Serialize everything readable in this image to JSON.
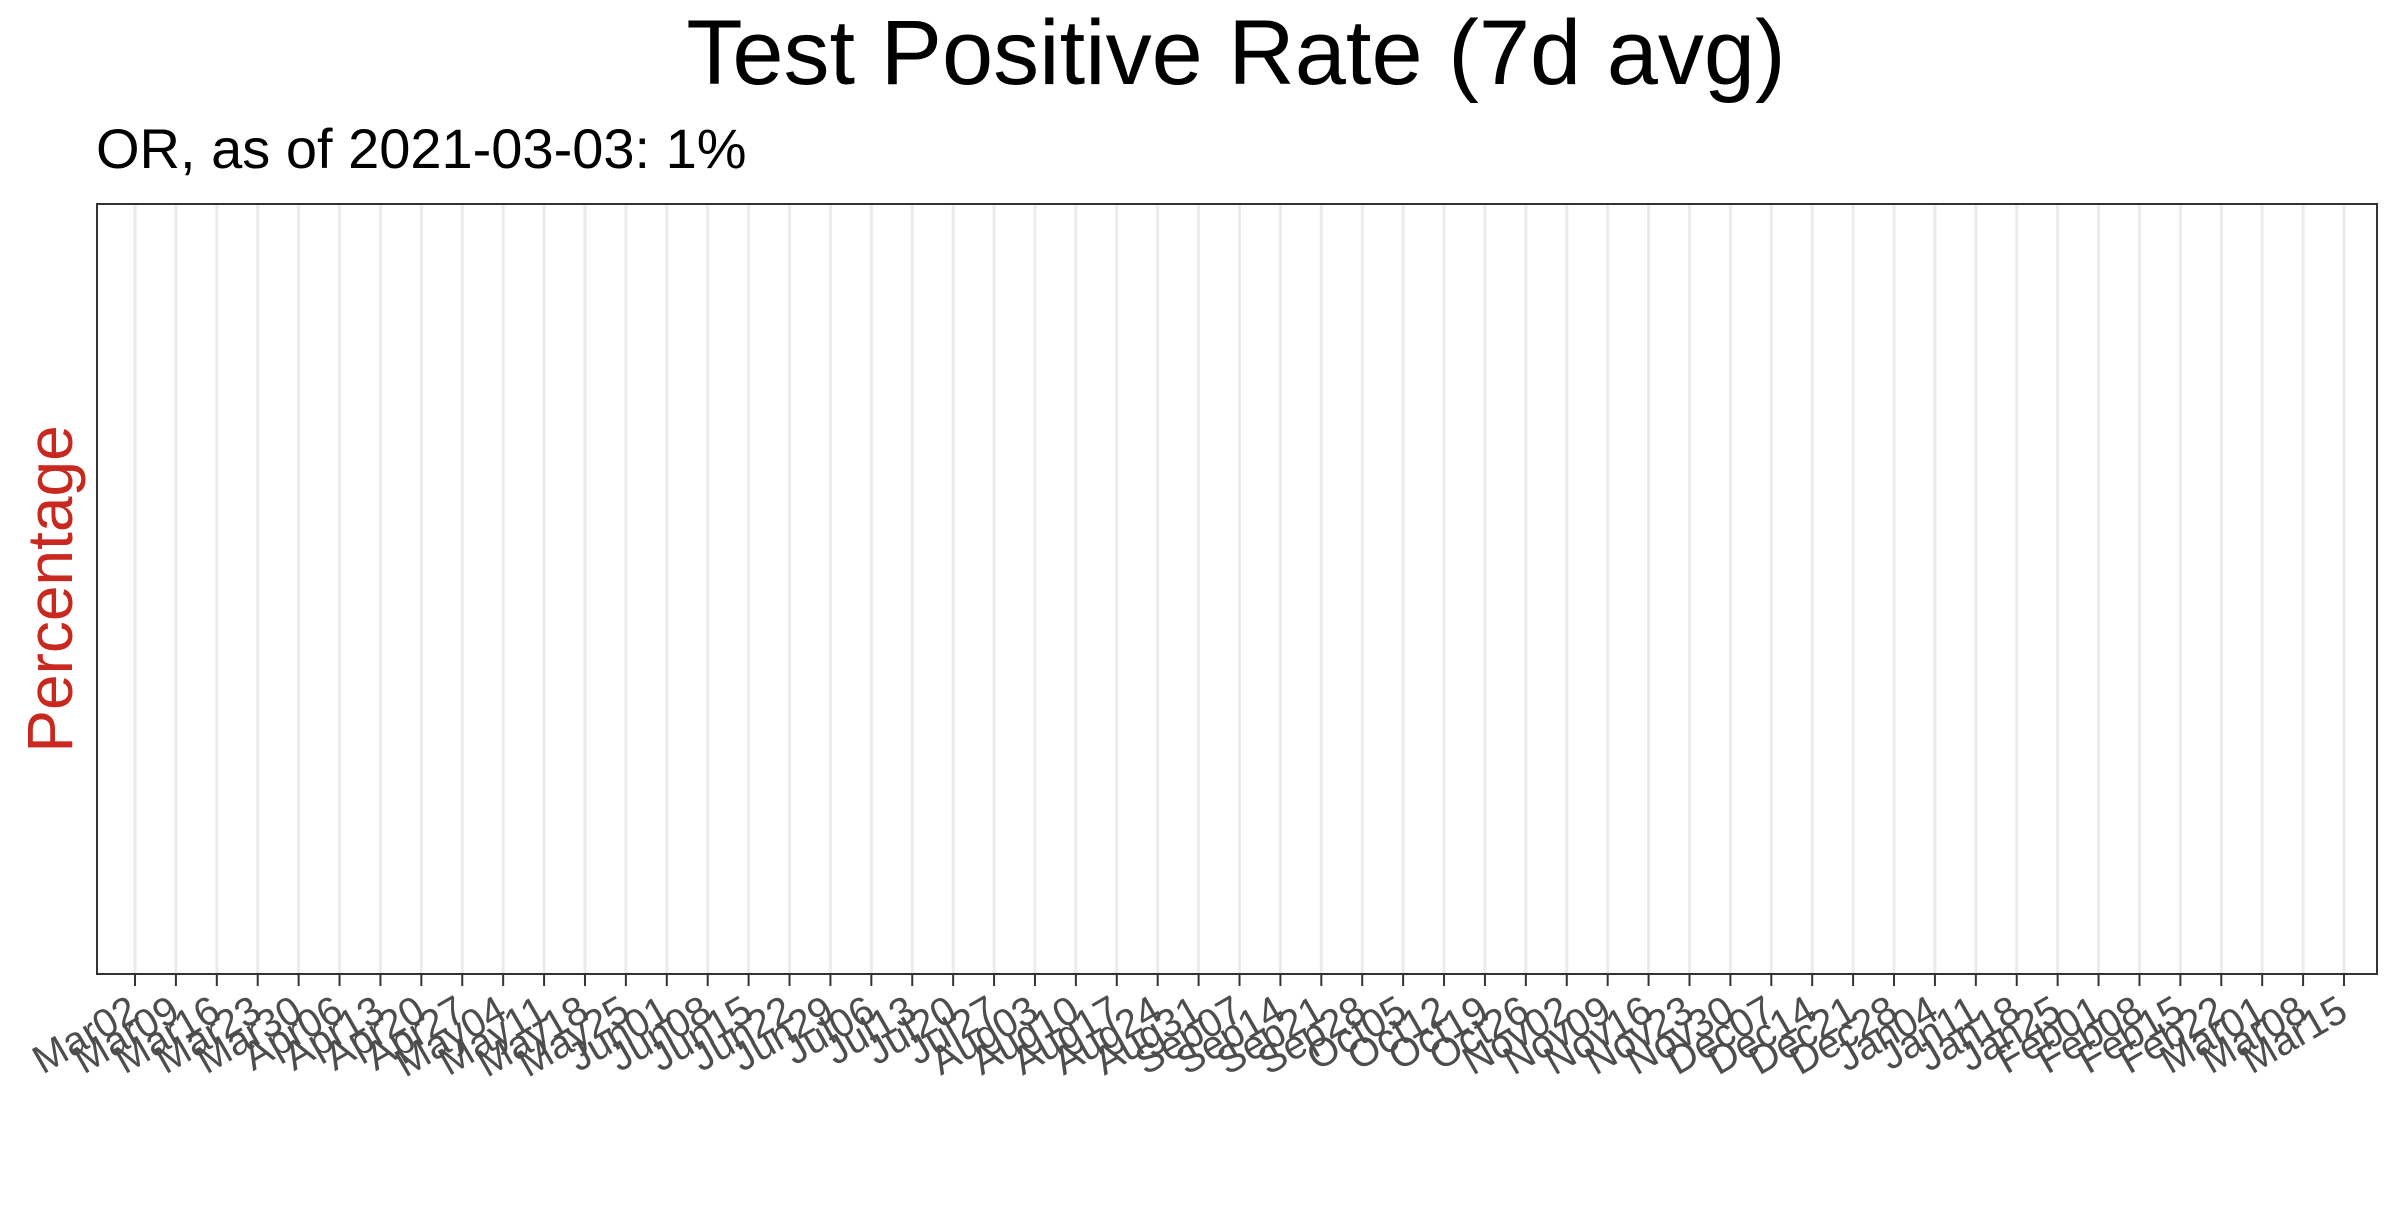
{
  "chart_data": {
    "type": "line",
    "title": "Test Positive Rate (7d avg)",
    "subtitle": "OR, as of 2021-03-03:  1%",
    "xlabel": "",
    "ylabel": "Percentage",
    "grid": {
      "vertical": true,
      "horizontal": false
    },
    "x_axis": {
      "type": "date",
      "range": [
        "2020-03-02",
        "2021-03-15"
      ],
      "ticks": [
        {
          "date": "2020-03-02",
          "label": "Mar02"
        },
        {
          "date": "2020-03-09",
          "label": "Mar09"
        },
        {
          "date": "2020-03-16",
          "label": "Mar16"
        },
        {
          "date": "2020-03-23",
          "label": "Mar23"
        },
        {
          "date": "2020-03-30",
          "label": "Mar30"
        },
        {
          "date": "2020-04-06",
          "label": "Apr06"
        },
        {
          "date": "2020-04-13",
          "label": "Apr13"
        },
        {
          "date": "2020-04-20",
          "label": "Apr20"
        },
        {
          "date": "2020-04-27",
          "label": "Apr27"
        },
        {
          "date": "2020-05-04",
          "label": "May04"
        },
        {
          "date": "2020-05-11",
          "label": "May11"
        },
        {
          "date": "2020-05-18",
          "label": "May18"
        },
        {
          "date": "2020-05-25",
          "label": "May25"
        },
        {
          "date": "2020-06-01",
          "label": "Jun01"
        },
        {
          "date": "2020-06-08",
          "label": "Jun08"
        },
        {
          "date": "2020-06-15",
          "label": "Jun15"
        },
        {
          "date": "2020-06-22",
          "label": "Jun22"
        },
        {
          "date": "2020-06-29",
          "label": "Jun29"
        },
        {
          "date": "2020-07-06",
          "label": "Jul06"
        },
        {
          "date": "2020-07-13",
          "label": "Jul13"
        },
        {
          "date": "2020-07-20",
          "label": "Jul20"
        },
        {
          "date": "2020-07-27",
          "label": "Jul27"
        },
        {
          "date": "2020-08-03",
          "label": "Aug03"
        },
        {
          "date": "2020-08-10",
          "label": "Aug10"
        },
        {
          "date": "2020-08-17",
          "label": "Aug17"
        },
        {
          "date": "2020-08-24",
          "label": "Aug24"
        },
        {
          "date": "2020-08-31",
          "label": "Aug31"
        },
        {
          "date": "2020-09-07",
          "label": "Sep07"
        },
        {
          "date": "2020-09-14",
          "label": "Sep14"
        },
        {
          "date": "2020-09-21",
          "label": "Sep21"
        },
        {
          "date": "2020-09-28",
          "label": "Sep28"
        },
        {
          "date": "2020-10-05",
          "label": "Oct05"
        },
        {
          "date": "2020-10-12",
          "label": "Oct12"
        },
        {
          "date": "2020-10-19",
          "label": "Oct19"
        },
        {
          "date": "2020-10-26",
          "label": "Oct26"
        },
        {
          "date": "2020-11-02",
          "label": "Nov02"
        },
        {
          "date": "2020-11-09",
          "label": "Nov09"
        },
        {
          "date": "2020-11-16",
          "label": "Nov16"
        },
        {
          "date": "2020-11-23",
          "label": "Nov23"
        },
        {
          "date": "2020-11-30",
          "label": "Nov30"
        },
        {
          "date": "2020-12-07",
          "label": "Dec07"
        },
        {
          "date": "2020-12-14",
          "label": "Dec14"
        },
        {
          "date": "2020-12-21",
          "label": "Dec21"
        },
        {
          "date": "2020-12-28",
          "label": "Dec28"
        },
        {
          "date": "2021-01-04",
          "label": "Jan04"
        },
        {
          "date": "2021-01-11",
          "label": "Jan11"
        },
        {
          "date": "2021-01-18",
          "label": "Jan18"
        },
        {
          "date": "2021-01-25",
          "label": "Jan25"
        },
        {
          "date": "2021-02-01",
          "label": "Feb01"
        },
        {
          "date": "2021-02-08",
          "label": "Feb08"
        },
        {
          "date": "2021-02-15",
          "label": "Feb15"
        },
        {
          "date": "2021-02-22",
          "label": "Feb22"
        },
        {
          "date": "2021-03-01",
          "label": "Mar01"
        },
        {
          "date": "2021-03-08",
          "label": "Mar08"
        },
        {
          "date": "2021-03-15",
          "label": "Mar15"
        }
      ]
    },
    "series": []
  },
  "colors": {
    "background": "#ffffff",
    "title": "#000000",
    "subtitle": "#000000",
    "ylabel": "#c8281e",
    "tick_label": "#4d4d4d",
    "tick_mark": "#333333",
    "panel_border": "#333333",
    "grid": "#ebebeb"
  }
}
